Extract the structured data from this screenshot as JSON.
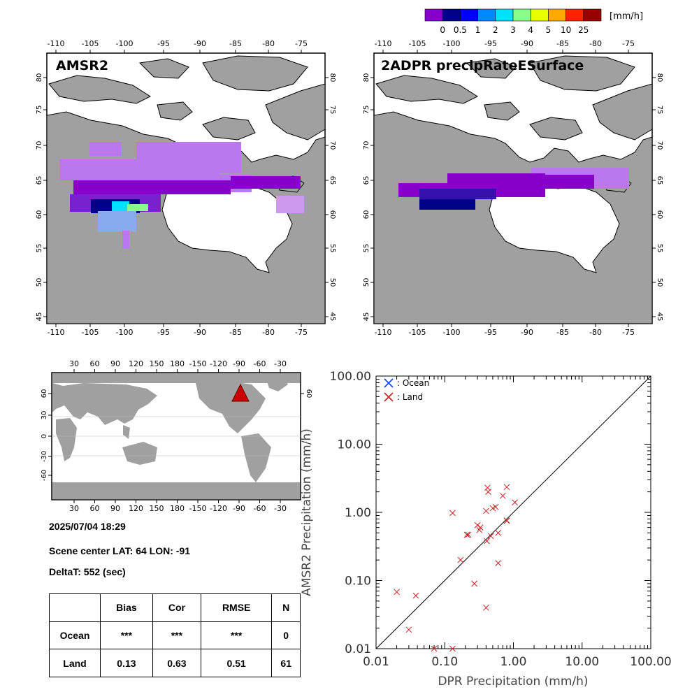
{
  "colorbar": {
    "colors": [
      "#8800cc",
      "#000088",
      "#0000ff",
      "#0088ff",
      "#00e0ff",
      "#88ff88",
      "#e8ff00",
      "#ffaa00",
      "#ff2200",
      "#990000"
    ],
    "labels": [
      "0",
      "0.5",
      "1",
      "2",
      "3",
      "4",
      "5",
      "10",
      "25"
    ],
    "unit": "[mm/h]"
  },
  "maps": {
    "lon_ticks": [
      "-110",
      "-105",
      "-100",
      "-95",
      "-90",
      "-85",
      "-80",
      "-75"
    ],
    "lat_ticks": [
      "80",
      "75",
      "70",
      "65",
      "60",
      "55",
      "50",
      "45"
    ],
    "left_title": "AMSR2",
    "right_title": "2ADPR precipRateESurface",
    "land_color": "#a0a0a0",
    "coast_color": "#000000"
  },
  "world_map": {
    "top_ticks": [
      "30",
      "60",
      "90",
      "120",
      "150",
      "180",
      "-150",
      "-120",
      "-90",
      "-60",
      "-30"
    ],
    "bottom_ticks": [
      "30",
      "60",
      "90",
      "120",
      "150",
      "180",
      "-150",
      "-120",
      "-90",
      "-60",
      "-30"
    ],
    "left_ticks": [
      "60",
      "30",
      "0",
      "-30",
      "-60"
    ],
    "right_ticks": [
      "60"
    ],
    "marker": "red-triangle"
  },
  "info": {
    "datetime": "2025/07/04 18:29",
    "scene_center": "Scene center LAT: 64   LON: -91",
    "delta_t": "DeltaT:  552 (sec)"
  },
  "stats_table": {
    "headers": [
      "",
      "Bias",
      "Cor",
      "RMSE",
      "N"
    ],
    "rows": [
      {
        "label": "Ocean",
        "bias": "***",
        "cor": "***",
        "rmse": "***",
        "n": "0"
      },
      {
        "label": "Land",
        "bias": "0.13",
        "cor": "0.63",
        "rmse": "0.51",
        "n": "61"
      }
    ]
  },
  "chart_data": {
    "type": "scatter",
    "xlabel": "DPR Precipitation (mm/h)",
    "ylabel": "AMSR2 Precipitation (mm/h)",
    "xlim": [
      0.01,
      100
    ],
    "ylim": [
      0.01,
      100
    ],
    "log_scale": true,
    "x_tick_labels": [
      "0.01",
      "0.10",
      "1.00",
      "10.00",
      "100.00"
    ],
    "y_tick_labels": [
      "0.01",
      "0.10",
      "1.00",
      "10.00",
      "100.00"
    ],
    "legend_placement": "top-left",
    "one_to_one_line": true,
    "series": [
      {
        "name": ": Ocean",
        "color": "#0044ee",
        "points": []
      },
      {
        "name": ": Land",
        "color": "#cc2222",
        "points": [
          [
            0.02,
            0.068
          ],
          [
            0.03,
            0.019
          ],
          [
            0.038,
            0.06
          ],
          [
            0.07,
            0.01
          ],
          [
            0.13,
            0.01
          ],
          [
            0.13,
            0.98
          ],
          [
            0.17,
            0.2
          ],
          [
            0.21,
            0.47
          ],
          [
            0.22,
            0.47
          ],
          [
            0.27,
            0.09
          ],
          [
            0.3,
            0.65
          ],
          [
            0.32,
            0.55
          ],
          [
            0.33,
            0.6
          ],
          [
            0.4,
            0.04
          ],
          [
            0.4,
            1.05
          ],
          [
            0.41,
            0.38
          ],
          [
            0.42,
            2.3
          ],
          [
            0.43,
            2.0
          ],
          [
            0.47,
            0.45
          ],
          [
            0.5,
            1.15
          ],
          [
            0.55,
            1.2
          ],
          [
            0.6,
            0.5
          ],
          [
            0.6,
            0.18
          ],
          [
            0.7,
            1.75
          ],
          [
            0.8,
            2.35
          ],
          [
            0.8,
            0.75
          ],
          [
            0.8,
            0.76
          ],
          [
            1.05,
            1.4
          ]
        ]
      }
    ]
  }
}
